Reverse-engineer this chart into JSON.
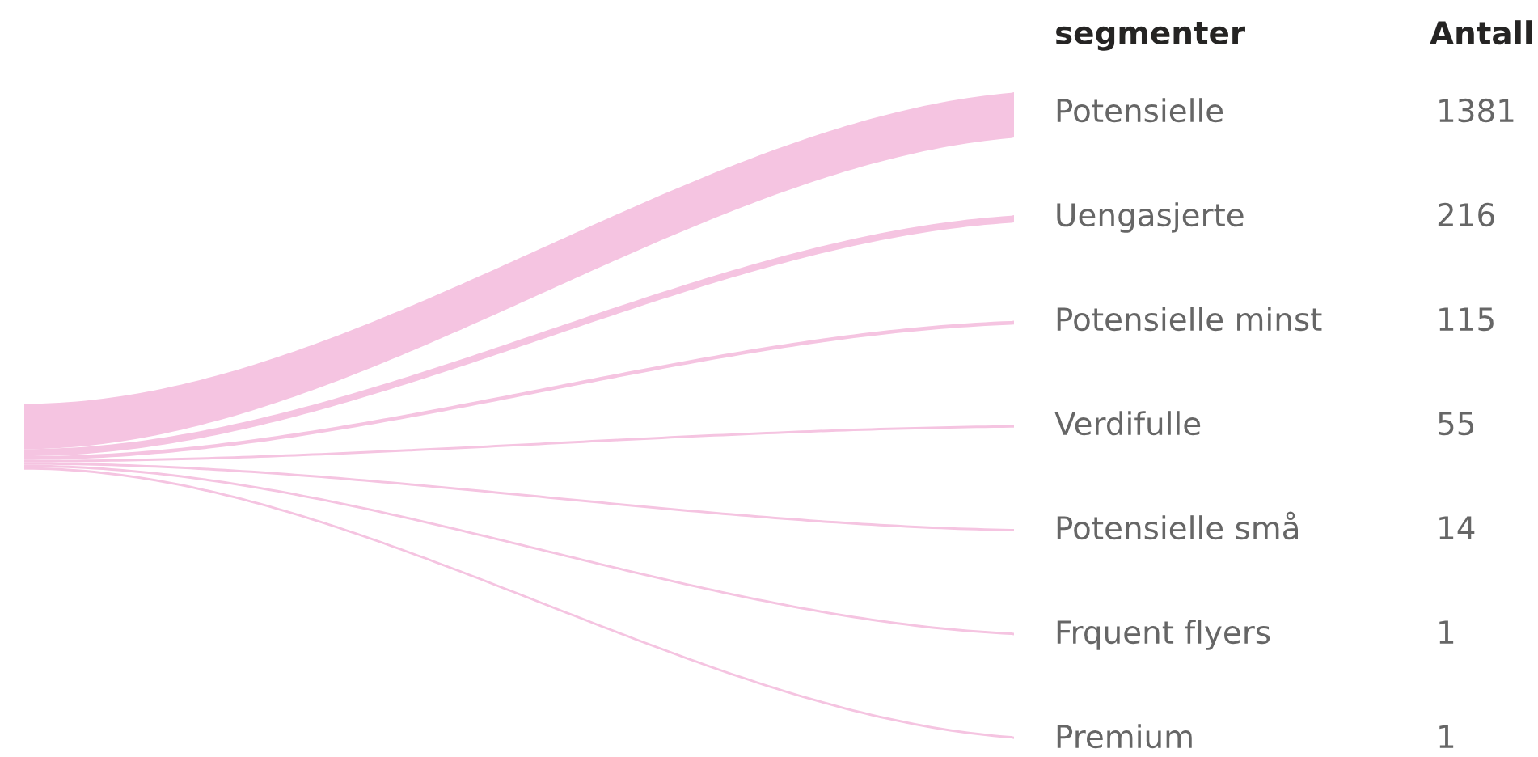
{
  "chart_data": {
    "type": "other",
    "annotations": [
      "segmenter",
      "Antall"
    ],
    "categories": [
      "Potensielle",
      "Uengasjerte",
      "Potensielle minst",
      "Verdifulle",
      "Potensielle små",
      "Frquent flyers",
      "Premium"
    ],
    "values": [
      1381,
      216,
      115,
      55,
      14,
      1,
      1
    ],
    "color": "#f5c4e1",
    "data_labels": true
  }
}
